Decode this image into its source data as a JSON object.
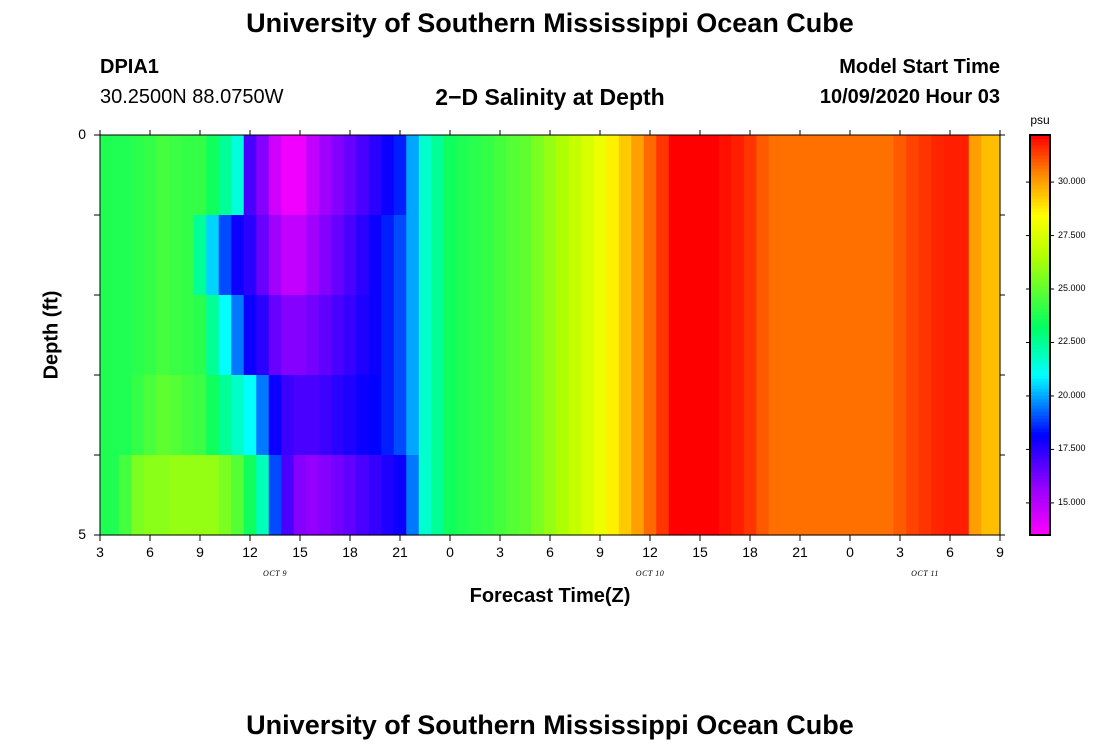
{
  "page": {
    "title": "University of Southern Mississippi Ocean Cube",
    "station_id": "DPIA1",
    "station_coords": "30.2500N 88.0750W",
    "plot_title": "2−D Salinity at Depth",
    "model_start_label": "Model Start Time",
    "model_start_value": "10/09/2020 Hour 03",
    "footer_title": "University of Southern Mississippi Ocean Cube"
  },
  "chart_data": {
    "type": "heatmap",
    "title": "2−D Salinity at Depth",
    "xlabel": "Forecast Time(Z)",
    "ylabel": "Depth (ft)",
    "x_tick_labels": [
      "3",
      "6",
      "9",
      "12",
      "15",
      "18",
      "21",
      "0",
      "3",
      "6",
      "9",
      "12",
      "15",
      "18",
      "21",
      "0",
      "3",
      "6",
      "9"
    ],
    "x_hours": [
      0,
      3,
      6,
      9,
      12,
      15,
      18,
      21,
      24,
      27,
      30,
      33,
      36,
      39,
      42,
      45,
      48,
      51,
      54
    ],
    "x_range_hours": [
      0,
      54
    ],
    "month_labels": [
      {
        "text": "OCT 9",
        "at_hour": 10.5
      },
      {
        "text": "OCT 10",
        "at_hour": 33
      },
      {
        "text": "OCT 11",
        "at_hour": 49.5
      }
    ],
    "y_tick_labels": [
      "0",
      "5"
    ],
    "y_range": [
      0,
      5
    ],
    "y_rows_depth_ft": [
      0.5,
      1.5,
      2.5,
      3.5,
      4.5
    ],
    "colorbar": {
      "unit": "psu",
      "min": 13.5,
      "max": 32.2,
      "tick_values": [
        15,
        17.5,
        20,
        22.5,
        25,
        27.5,
        30
      ],
      "tick_labels": [
        "15.000",
        "17.500",
        "20.000",
        "22.500",
        "25.000",
        "27.500",
        "30.000"
      ]
    },
    "time_hours": [
      0,
      0.75,
      1.5,
      2.25,
      3,
      3.75,
      4.5,
      5.25,
      6,
      6.75,
      7.5,
      8.25,
      9,
      9.75,
      10.5,
      11.25,
      12,
      12.75,
      13.5,
      14.25,
      15,
      15.75,
      16.5,
      17.25,
      18,
      18.75,
      19.5,
      20.25,
      21,
      21.75,
      22.5,
      23.25,
      24,
      24.75,
      25.5,
      26.25,
      27,
      27.75,
      28.5,
      29.25,
      30,
      30.75,
      31.5,
      32.25,
      33,
      33.75,
      34.5,
      35.25,
      36,
      36.75,
      37.5,
      38.25,
      39,
      39.75,
      40.5,
      41.25,
      42,
      42.75,
      43.5,
      44.25,
      45,
      45.75,
      46.5,
      47.25,
      48,
      48.75,
      49.5,
      50.25,
      51,
      51.75,
      52.5,
      53.25,
      54
    ],
    "salinity_psu": [
      [
        23.8,
        23.8,
        23.8,
        24.0,
        24.2,
        24.5,
        24.3,
        24.2,
        24.2,
        23.5,
        22.5,
        21.5,
        17.0,
        16.0,
        14.5,
        13.8,
        13.8,
        14.8,
        15.5,
        16.0,
        16.5,
        17.0,
        17.5,
        18.0,
        18.5,
        20.0,
        21.7,
        22.5,
        23.5,
        23.8,
        24.0,
        24.2,
        24.5,
        24.8,
        25.0,
        25.5,
        26.0,
        26.5,
        27.0,
        27.5,
        28.0,
        28.7,
        29.3,
        30.0,
        30.8,
        31.5,
        32.2,
        32.2,
        32.2,
        32.2,
        32.0,
        31.8,
        31.5,
        31.0,
        30.7,
        30.7,
        30.7,
        30.7,
        30.7,
        30.7,
        30.7,
        30.7,
        30.7,
        30.7,
        31.0,
        31.3,
        31.5,
        31.7,
        31.8,
        31.8,
        30.0,
        29.5,
        29.5
      ],
      [
        23.8,
        23.8,
        23.8,
        24.0,
        24.2,
        24.5,
        24.3,
        24.2,
        22.5,
        20.5,
        19.0,
        18.0,
        17.5,
        16.5,
        15.5,
        14.8,
        14.8,
        15.5,
        16.0,
        16.5,
        17.0,
        17.5,
        18.0,
        18.5,
        19.0,
        20.0,
        21.7,
        22.5,
        23.5,
        23.8,
        24.0,
        24.2,
        24.5,
        24.8,
        25.0,
        25.5,
        26.0,
        26.5,
        27.0,
        27.5,
        28.0,
        28.7,
        29.3,
        30.0,
        30.8,
        31.5,
        32.2,
        32.2,
        32.2,
        32.2,
        32.0,
        31.8,
        31.5,
        31.0,
        30.7,
        30.7,
        30.7,
        30.7,
        30.7,
        30.7,
        30.7,
        30.7,
        30.7,
        30.7,
        31.0,
        31.3,
        31.5,
        31.7,
        31.8,
        31.8,
        30.0,
        29.5,
        29.5
      ],
      [
        23.8,
        23.8,
        23.8,
        24.0,
        24.2,
        24.5,
        24.3,
        24.2,
        24.0,
        22.5,
        21.0,
        19.5,
        18.0,
        17.5,
        16.5,
        16.0,
        16.0,
        16.3,
        16.6,
        17.0,
        17.3,
        17.7,
        18.0,
        18.5,
        19.0,
        20.0,
        21.7,
        22.5,
        23.5,
        23.8,
        24.0,
        24.2,
        24.5,
        24.8,
        25.0,
        25.5,
        26.0,
        26.5,
        27.0,
        27.5,
        28.0,
        28.7,
        29.3,
        30.0,
        30.8,
        31.5,
        32.2,
        32.2,
        32.2,
        32.2,
        32.0,
        31.8,
        31.5,
        31.0,
        30.7,
        30.7,
        30.7,
        30.7,
        30.7,
        30.7,
        30.7,
        30.7,
        30.7,
        30.7,
        31.0,
        31.3,
        31.5,
        31.7,
        31.8,
        31.8,
        30.0,
        29.5,
        29.5
      ],
      [
        23.8,
        23.8,
        23.8,
        24.2,
        24.6,
        25.0,
        24.8,
        24.5,
        24.3,
        23.5,
        22.5,
        21.8,
        21.0,
        19.5,
        18.0,
        17.2,
        17.0,
        17.0,
        17.2,
        17.5,
        17.7,
        18.0,
        18.2,
        18.5,
        19.0,
        20.0,
        21.7,
        22.5,
        23.5,
        23.8,
        24.0,
        24.2,
        24.5,
        24.8,
        25.0,
        25.5,
        26.0,
        26.5,
        27.0,
        27.5,
        28.0,
        28.7,
        29.3,
        30.0,
        30.8,
        31.5,
        32.2,
        32.2,
        32.2,
        32.2,
        32.0,
        31.8,
        31.5,
        31.0,
        30.7,
        30.7,
        30.7,
        30.7,
        30.7,
        30.7,
        30.7,
        30.7,
        30.7,
        30.7,
        31.0,
        31.3,
        31.5,
        31.7,
        31.8,
        31.8,
        30.0,
        29.5,
        29.5
      ],
      [
        23.8,
        23.8,
        24.5,
        25.5,
        25.8,
        25.8,
        26.0,
        26.0,
        26.0,
        26.0,
        25.5,
        24.8,
        23.5,
        22.0,
        19.0,
        17.0,
        16.0,
        15.8,
        16.0,
        16.3,
        16.6,
        17.0,
        17.3,
        17.7,
        18.0,
        19.5,
        21.7,
        22.5,
        23.5,
        23.8,
        24.0,
        24.2,
        24.5,
        24.8,
        25.0,
        25.5,
        26.0,
        26.5,
        27.0,
        27.5,
        28.0,
        28.7,
        29.3,
        30.0,
        30.8,
        31.5,
        32.2,
        32.2,
        32.2,
        32.2,
        32.0,
        31.8,
        31.5,
        31.0,
        30.7,
        30.7,
        30.7,
        30.7,
        30.7,
        30.7,
        30.7,
        30.7,
        30.7,
        30.7,
        31.0,
        31.3,
        31.5,
        31.7,
        31.8,
        31.8,
        30.0,
        29.5,
        29.5
      ]
    ]
  }
}
